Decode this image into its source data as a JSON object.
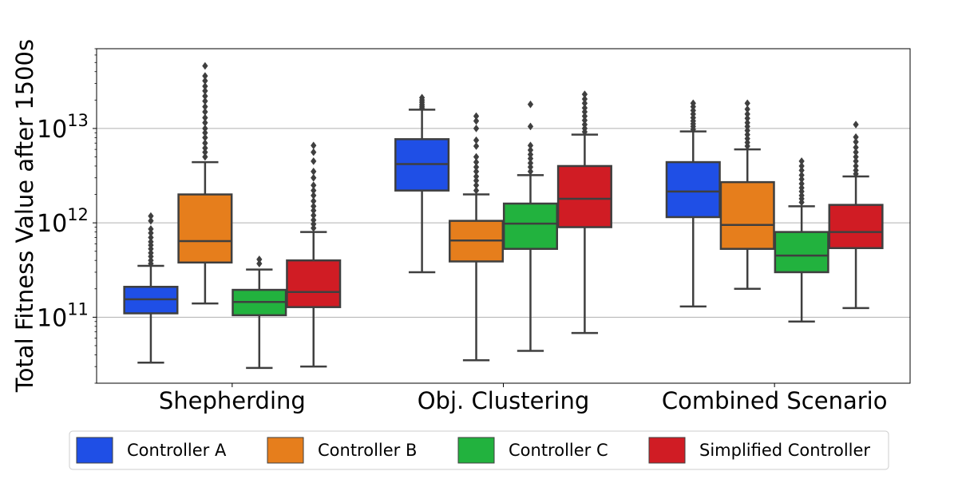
{
  "chart_data": {
    "type": "boxplot",
    "title": "",
    "xlabel": "",
    "ylabel": "Total Fitness Value after 1500s",
    "yscale": "log",
    "ylim": [
      20000000000.0,
      70000000000000.0
    ],
    "yticks": [
      {
        "value": 100000000000.0,
        "base": "10",
        "exp": "11"
      },
      {
        "value": 1000000000000.0,
        "base": "10",
        "exp": "12"
      },
      {
        "value": 10000000000000.0,
        "base": "10",
        "exp": "13"
      }
    ],
    "grid": "horizontal",
    "legend_position": "bottom",
    "categories": [
      "Shepherding",
      "Obj. Clustering",
      "Combined Scenario"
    ],
    "series": [
      {
        "name": "Controller A",
        "color": "#1f4fe6",
        "boxes": [
          {
            "whislo": 33000000000.0,
            "q1": 110000000000.0,
            "med": 155000000000.0,
            "q3": 210000000000.0,
            "whishi": 350000000000.0,
            "fliers": [
              370000000000.0,
              400000000000.0,
              440000000000.0,
              480000000000.0,
              530000000000.0,
              580000000000.0,
              630000000000.0,
              700000000000.0,
              780000000000.0,
              860000000000.0,
              1050000000000.0,
              1180000000000.0
            ]
          },
          {
            "whislo": 300000000000.0,
            "q1": 2200000000000.0,
            "med": 4200000000000.0,
            "q3": 7700000000000.0,
            "whishi": 15800000000000.0,
            "fliers": [
              16500000000000.0,
              17200000000000.0,
              18000000000000.0,
              19000000000000.0,
              20000000000000.0,
              21200000000000.0
            ]
          },
          {
            "whislo": 130000000000.0,
            "q1": 1150000000000.0,
            "med": 2150000000000.0,
            "q3": 4400000000000.0,
            "whishi": 9300000000000.0,
            "fliers": [
              9800000000000.0,
              10500000000000.0,
              11200000000000.0,
              12000000000000.0,
              13000000000000.0,
              14200000000000.0,
              15500000000000.0,
              17000000000000.0,
              18500000000000.0
            ]
          }
        ]
      },
      {
        "name": "Controller B",
        "color": "#e67e1c",
        "boxes": [
          {
            "whislo": 140000000000.0,
            "q1": 380000000000.0,
            "med": 640000000000.0,
            "q3": 2000000000000.0,
            "whishi": 4400000000000.0,
            "fliers": [
              5000000000000.0,
              5600000000000.0,
              6200000000000.0,
              7000000000000.0,
              8000000000000.0,
              9000000000000.0,
              10000000000000.0,
              11500000000000.0,
              13000000000000.0,
              15000000000000.0,
              17000000000000.0,
              19500000000000.0,
              22000000000000.0,
              25000000000000.0,
              28000000000000.0,
              32000000000000.0,
              36000000000000.0,
              46000000000000.0
            ]
          },
          {
            "whislo": 35000000000.0,
            "q1": 390000000000.0,
            "med": 650000000000.0,
            "q3": 1050000000000.0,
            "whishi": 2000000000000.0,
            "fliers": [
              2200000000000.0,
              2500000000000.0,
              2800000000000.0,
              3100000000000.0,
              3500000000000.0,
              3900000000000.0,
              4400000000000.0,
              5000000000000.0,
              6500000000000.0,
              7500000000000.0,
              10000000000000.0,
              12000000000000.0,
              13500000000000.0
            ]
          },
          {
            "whislo": 200000000000.0,
            "q1": 530000000000.0,
            "med": 950000000000.0,
            "q3": 2700000000000.0,
            "whishi": 6000000000000.0,
            "fliers": [
              6500000000000.0,
              7100000000000.0,
              7800000000000.0,
              8600000000000.0,
              9500000000000.0,
              10500000000000.0,
              11500000000000.0,
              12800000000000.0,
              14200000000000.0,
              16000000000000.0,
              18500000000000.0
            ]
          }
        ]
      },
      {
        "name": "Controller C",
        "color": "#22b23e",
        "boxes": [
          {
            "whislo": 29000000000.0,
            "q1": 105000000000.0,
            "med": 145000000000.0,
            "q3": 195000000000.0,
            "whishi": 320000000000.0,
            "fliers": [
              370000000000.0,
              410000000000.0
            ]
          },
          {
            "whislo": 44000000000.0,
            "q1": 530000000000.0,
            "med": 980000000000.0,
            "q3": 1600000000000.0,
            "whishi": 3200000000000.0,
            "fliers": [
              3500000000000.0,
              3900000000000.0,
              4300000000000.0,
              4800000000000.0,
              5300000000000.0,
              5900000000000.0,
              6600000000000.0,
              10500000000000.0,
              18000000000000.0
            ]
          },
          {
            "whislo": 90000000000.0,
            "q1": 300000000000.0,
            "med": 450000000000.0,
            "q3": 800000000000.0,
            "whishi": 1500000000000.0,
            "fliers": [
              1650000000000.0,
              1800000000000.0,
              1950000000000.0,
              2150000000000.0,
              2350000000000.0,
              2600000000000.0,
              2900000000000.0,
              3200000000000.0,
              3600000000000.0,
              4000000000000.0,
              4500000000000.0
            ]
          }
        ]
      },
      {
        "name": "Simplified Controller",
        "color": "#d01c24",
        "boxes": [
          {
            "whislo": 30000000000.0,
            "q1": 128000000000.0,
            "med": 185000000000.0,
            "q3": 400000000000.0,
            "whishi": 800000000000.0,
            "fliers": [
              880000000000.0,
              970000000000.0,
              1070000000000.0,
              1200000000000.0,
              1350000000000.0,
              1500000000000.0,
              1700000000000.0,
              1950000000000.0,
              2200000000000.0,
              2500000000000.0,
              3000000000000.0,
              3500000000000.0,
              4500000000000.0,
              5600000000000.0,
              6600000000000.0
            ]
          },
          {
            "whislo": 68000000000.0,
            "q1": 900000000000.0,
            "med": 1800000000000.0,
            "q3": 4000000000000.0,
            "whishi": 8600000000000.0,
            "fliers": [
              9200000000000.0,
              10000000000000.0,
              11000000000000.0,
              12200000000000.0,
              13500000000000.0,
              15000000000000.0,
              16500000000000.0,
              18500000000000.0,
              20500000000000.0,
              23000000000000.0
            ]
          },
          {
            "whislo": 125000000000.0,
            "q1": 540000000000.0,
            "med": 800000000000.0,
            "q3": 1550000000000.0,
            "whishi": 3100000000000.0,
            "fliers": [
              3300000000000.0,
              3600000000000.0,
              4000000000000.0,
              4500000000000.0,
              5000000000000.0,
              5600000000000.0,
              6300000000000.0,
              7200000000000.0,
              8100000000000.0,
              11000000000000.0
            ]
          }
        ]
      }
    ]
  }
}
